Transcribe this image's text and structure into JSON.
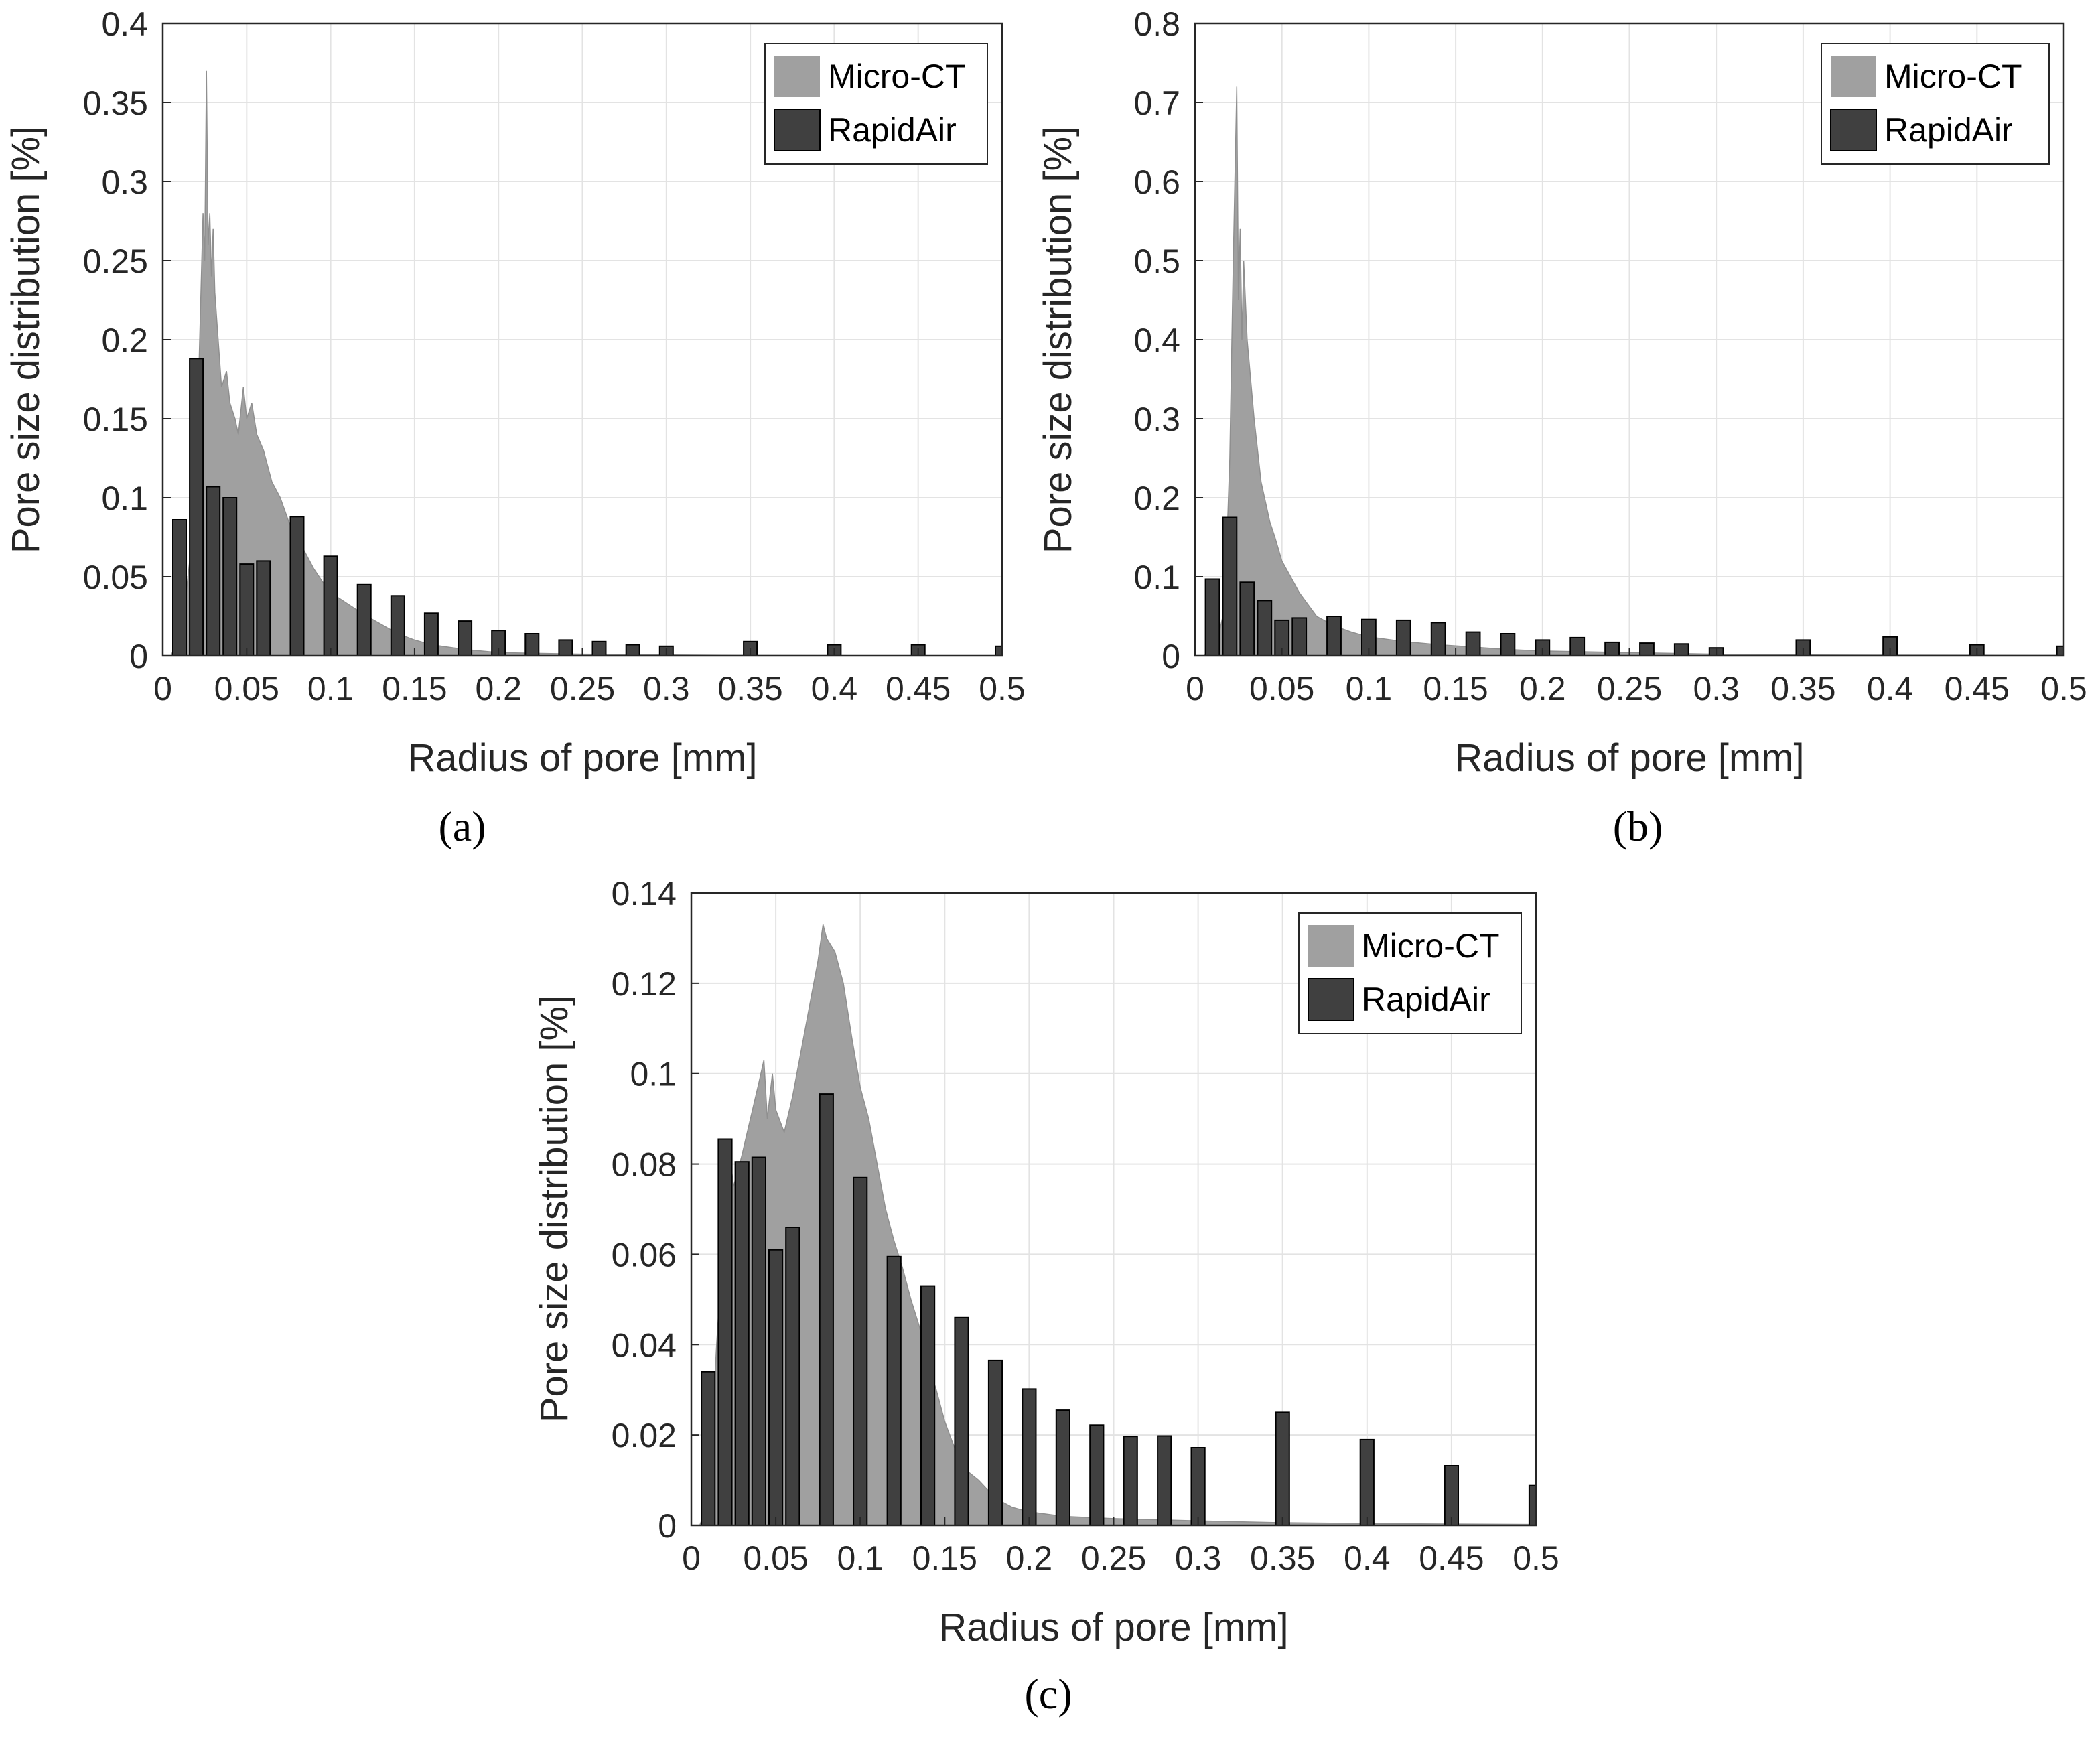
{
  "chart_data": [
    {
      "id": "a",
      "type": "bar",
      "caption": "(a)",
      "xlabel": "Radius of pore [mm]",
      "ylabel": "Pore size distribution [%]",
      "xlim": [
        0,
        0.5
      ],
      "ylim": [
        0,
        0.4
      ],
      "xticks": [
        "0",
        "0.05",
        "0.1",
        "0.15",
        "0.2",
        "0.25",
        "0.3",
        "0.35",
        "0.4",
        "0.45",
        "0.5"
      ],
      "yticks": [
        "0",
        "0.05",
        "0.1",
        "0.15",
        "0.2",
        "0.25",
        "0.3",
        "0.35",
        "0.4"
      ],
      "grid": true,
      "legend": {
        "position": "top-right",
        "entries": [
          "Micro-CT",
          "RapidAir"
        ]
      },
      "series": [
        {
          "name": "Micro-CT",
          "color": "#a0a0a0",
          "kind": "histogram",
          "points": [
            [
              0.005,
              0.0
            ],
            [
              0.012,
              0.02
            ],
            [
              0.016,
              0.06
            ],
            [
              0.02,
              0.12
            ],
            [
              0.022,
              0.2
            ],
            [
              0.024,
              0.28
            ],
            [
              0.025,
              0.25
            ],
            [
              0.026,
              0.37
            ],
            [
              0.027,
              0.26
            ],
            [
              0.028,
              0.28
            ],
            [
              0.029,
              0.24
            ],
            [
              0.03,
              0.27
            ],
            [
              0.031,
              0.23
            ],
            [
              0.033,
              0.2
            ],
            [
              0.035,
              0.17
            ],
            [
              0.038,
              0.18
            ],
            [
              0.04,
              0.16
            ],
            [
              0.043,
              0.15
            ],
            [
              0.045,
              0.14
            ],
            [
              0.048,
              0.17
            ],
            [
              0.05,
              0.15
            ],
            [
              0.053,
              0.16
            ],
            [
              0.056,
              0.14
            ],
            [
              0.06,
              0.13
            ],
            [
              0.065,
              0.11
            ],
            [
              0.07,
              0.1
            ],
            [
              0.075,
              0.085
            ],
            [
              0.08,
              0.075
            ],
            [
              0.085,
              0.065
            ],
            [
              0.09,
              0.055
            ],
            [
              0.095,
              0.047
            ],
            [
              0.1,
              0.04
            ],
            [
              0.11,
              0.033
            ],
            [
              0.12,
              0.026
            ],
            [
              0.13,
              0.02
            ],
            [
              0.14,
              0.014
            ],
            [
              0.15,
              0.01
            ],
            [
              0.16,
              0.007
            ],
            [
              0.18,
              0.004
            ],
            [
              0.2,
              0.002
            ],
            [
              0.25,
              0.001
            ],
            [
              0.3,
              0.0005
            ],
            [
              0.35,
              0.0002
            ],
            [
              0.5,
              0.0
            ]
          ]
        },
        {
          "name": "RapidAir",
          "color": "#404040",
          "kind": "bars",
          "width": 0.008,
          "x": [
            0.01,
            0.02,
            0.03,
            0.04,
            0.05,
            0.06,
            0.08,
            0.1,
            0.12,
            0.14,
            0.16,
            0.18,
            0.2,
            0.22,
            0.24,
            0.26,
            0.28,
            0.3,
            0.35,
            0.4,
            0.45,
            0.5
          ],
          "values": [
            0.086,
            0.188,
            0.107,
            0.1,
            0.058,
            0.06,
            0.088,
            0.063,
            0.045,
            0.038,
            0.027,
            0.022,
            0.016,
            0.014,
            0.01,
            0.009,
            0.007,
            0.006,
            0.009,
            0.007,
            0.007,
            0.006
          ]
        }
      ]
    },
    {
      "id": "b",
      "type": "bar",
      "caption": "(b)",
      "xlabel": "Radius of pore [mm]",
      "ylabel": "Pore size distribution [%]",
      "xlim": [
        0,
        0.5
      ],
      "ylim": [
        0,
        0.8
      ],
      "xticks": [
        "0",
        "0.05",
        "0.1",
        "0.15",
        "0.2",
        "0.25",
        "0.3",
        "0.35",
        "0.4",
        "0.45",
        "0.5"
      ],
      "yticks": [
        "0",
        "0.1",
        "0.2",
        "0.3",
        "0.4",
        "0.5",
        "0.6",
        "0.7",
        "0.8"
      ],
      "grid": true,
      "legend": {
        "position": "top-right",
        "entries": [
          "Micro-CT",
          "RapidAir"
        ]
      },
      "series": [
        {
          "name": "Micro-CT",
          "color": "#a0a0a0",
          "kind": "histogram",
          "points": [
            [
              0.005,
              0.0
            ],
            [
              0.012,
              0.01
            ],
            [
              0.016,
              0.05
            ],
            [
              0.018,
              0.12
            ],
            [
              0.02,
              0.25
            ],
            [
              0.022,
              0.5
            ],
            [
              0.024,
              0.72
            ],
            [
              0.025,
              0.45
            ],
            [
              0.026,
              0.54
            ],
            [
              0.027,
              0.4
            ],
            [
              0.028,
              0.5
            ],
            [
              0.03,
              0.4
            ],
            [
              0.032,
              0.35
            ],
            [
              0.034,
              0.3
            ],
            [
              0.036,
              0.26
            ],
            [
              0.038,
              0.22
            ],
            [
              0.04,
              0.2
            ],
            [
              0.043,
              0.17
            ],
            [
              0.046,
              0.15
            ],
            [
              0.05,
              0.12
            ],
            [
              0.055,
              0.1
            ],
            [
              0.06,
              0.08
            ],
            [
              0.065,
              0.065
            ],
            [
              0.07,
              0.05
            ],
            [
              0.08,
              0.038
            ],
            [
              0.09,
              0.03
            ],
            [
              0.1,
              0.024
            ],
            [
              0.12,
              0.018
            ],
            [
              0.14,
              0.014
            ],
            [
              0.16,
              0.011
            ],
            [
              0.18,
              0.008
            ],
            [
              0.2,
              0.006
            ],
            [
              0.25,
              0.004
            ],
            [
              0.3,
              0.002
            ],
            [
              0.35,
              0.001
            ],
            [
              0.5,
              0.0005
            ]
          ]
        },
        {
          "name": "RapidAir",
          "color": "#404040",
          "kind": "bars",
          "width": 0.008,
          "x": [
            0.01,
            0.02,
            0.03,
            0.04,
            0.05,
            0.06,
            0.08,
            0.1,
            0.12,
            0.14,
            0.16,
            0.18,
            0.2,
            0.22,
            0.24,
            0.26,
            0.28,
            0.3,
            0.35,
            0.4,
            0.45,
            0.5
          ],
          "values": [
            0.097,
            0.175,
            0.093,
            0.07,
            0.045,
            0.048,
            0.05,
            0.046,
            0.045,
            0.042,
            0.03,
            0.028,
            0.02,
            0.023,
            0.017,
            0.016,
            0.015,
            0.01,
            0.02,
            0.024,
            0.014,
            0.012
          ]
        }
      ]
    },
    {
      "id": "c",
      "type": "bar",
      "caption": "(c)",
      "xlabel": "Radius of pore [mm]",
      "ylabel": "Pore size distribution [%]",
      "xlim": [
        0,
        0.5
      ],
      "ylim": [
        0,
        0.14
      ],
      "xticks": [
        "0",
        "0.05",
        "0.1",
        "0.15",
        "0.2",
        "0.25",
        "0.3",
        "0.35",
        "0.4",
        "0.45",
        "0.5"
      ],
      "yticks": [
        "0",
        "0.02",
        "0.04",
        "0.06",
        "0.08",
        "0.1",
        "0.12",
        "0.14"
      ],
      "grid": true,
      "legend": {
        "position": "top-right",
        "entries": [
          "Micro-CT",
          "RapidAir"
        ]
      },
      "series": [
        {
          "name": "Micro-CT",
          "color": "#a0a0a0",
          "kind": "histogram",
          "points": [
            [
              0.005,
              0.0
            ],
            [
              0.01,
              0.005
            ],
            [
              0.015,
              0.04
            ],
            [
              0.02,
              0.07
            ],
            [
              0.022,
              0.085
            ],
            [
              0.025,
              0.075
            ],
            [
              0.03,
              0.082
            ],
            [
              0.035,
              0.09
            ],
            [
              0.04,
              0.098
            ],
            [
              0.043,
              0.103
            ],
            [
              0.045,
              0.09
            ],
            [
              0.048,
              0.1
            ],
            [
              0.05,
              0.092
            ],
            [
              0.055,
              0.087
            ],
            [
              0.06,
              0.095
            ],
            [
              0.065,
              0.105
            ],
            [
              0.07,
              0.115
            ],
            [
              0.075,
              0.125
            ],
            [
              0.078,
              0.133
            ],
            [
              0.08,
              0.13
            ],
            [
              0.085,
              0.127
            ],
            [
              0.09,
              0.12
            ],
            [
              0.095,
              0.108
            ],
            [
              0.1,
              0.097
            ],
            [
              0.105,
              0.09
            ],
            [
              0.11,
              0.08
            ],
            [
              0.115,
              0.07
            ],
            [
              0.12,
              0.063
            ],
            [
              0.125,
              0.057
            ],
            [
              0.13,
              0.05
            ],
            [
              0.135,
              0.044
            ],
            [
              0.14,
              0.036
            ],
            [
              0.145,
              0.03
            ],
            [
              0.15,
              0.023
            ],
            [
              0.155,
              0.018
            ],
            [
              0.16,
              0.013
            ],
            [
              0.17,
              0.01
            ],
            [
              0.18,
              0.006
            ],
            [
              0.19,
              0.004
            ],
            [
              0.2,
              0.003
            ],
            [
              0.22,
              0.002
            ],
            [
              0.25,
              0.0015
            ],
            [
              0.3,
              0.001
            ],
            [
              0.35,
              0.0006
            ],
            [
              0.4,
              0.0004
            ],
            [
              0.5,
              0.0002
            ]
          ]
        },
        {
          "name": "RapidAir",
          "color": "#404040",
          "kind": "bars",
          "width": 0.008,
          "x": [
            0.01,
            0.02,
            0.03,
            0.04,
            0.05,
            0.06,
            0.08,
            0.1,
            0.12,
            0.14,
            0.16,
            0.18,
            0.2,
            0.22,
            0.24,
            0.26,
            0.28,
            0.3,
            0.35,
            0.4,
            0.45,
            0.5
          ],
          "values": [
            0.034,
            0.0855,
            0.0805,
            0.0815,
            0.061,
            0.066,
            0.0955,
            0.077,
            0.0595,
            0.053,
            0.046,
            0.0365,
            0.0302,
            0.0255,
            0.0222,
            0.0197,
            0.0198,
            0.0172,
            0.025,
            0.019,
            0.0132,
            0.0088
          ]
        }
      ]
    }
  ]
}
